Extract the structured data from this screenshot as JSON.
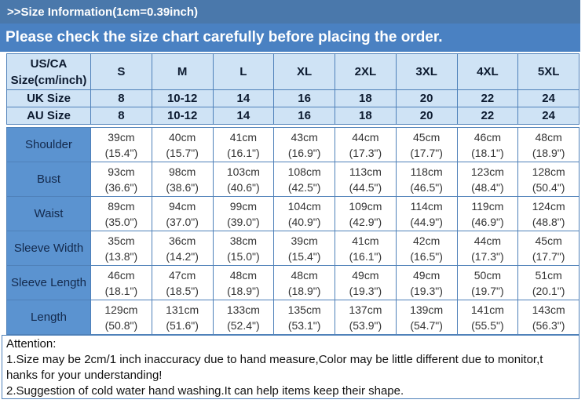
{
  "title_bar": {
    "text": ">>Size Information(1cm=0.39inch)"
  },
  "notice_bar": {
    "text": "Please check the size chart carefully before placing the order."
  },
  "size_table": {
    "corner_label_line1": "US/CA",
    "corner_label_line2": "Size(cm/inch)",
    "size_columns": [
      "S",
      "M",
      "L",
      "XL",
      "2XL",
      "3XL",
      "4XL",
      "5XL"
    ],
    "uk_row": {
      "label": "UK Size",
      "values": [
        "8",
        "10-12",
        "14",
        "16",
        "18",
        "20",
        "22",
        "24"
      ]
    },
    "au_row": {
      "label": "AU Size",
      "values": [
        "8",
        "10-12",
        "14",
        "16",
        "18",
        "20",
        "22",
        "24"
      ]
    },
    "measurement_rows": [
      {
        "label": "Shoulder",
        "cm": [
          "39cm",
          "40cm",
          "41cm",
          "43cm",
          "44cm",
          "45cm",
          "46cm",
          "48cm"
        ],
        "inch": [
          "(15.4\")",
          "(15.7\")",
          "(16.1\")",
          "(16.9\")",
          "(17.3\")",
          "(17.7\")",
          "(18.1\")",
          "(18.9\")"
        ]
      },
      {
        "label": "Bust",
        "cm": [
          "93cm",
          "98cm",
          "103cm",
          "108cm",
          "113cm",
          "118cm",
          "123cm",
          "128cm"
        ],
        "inch": [
          "(36.6\")",
          "(38.6\")",
          "(40.6\")",
          "(42.5\")",
          "(44.5\")",
          "(46.5\")",
          "(48.4\")",
          "(50.4\")"
        ]
      },
      {
        "label": "Waist",
        "cm": [
          "89cm",
          "94cm",
          "99cm",
          "104cm",
          "109cm",
          "114cm",
          "119cm",
          "124cm"
        ],
        "inch": [
          "(35.0\")",
          "(37.0\")",
          "(39.0\")",
          "(40.9\")",
          "(42.9\")",
          "(44.9\")",
          "(46.9\")",
          "(48.8\")"
        ]
      },
      {
        "label": "Sleeve Width",
        "cm": [
          "35cm",
          "36cm",
          "38cm",
          "39cm",
          "41cm",
          "42cm",
          "44cm",
          "45cm"
        ],
        "inch": [
          "(13.8\")",
          "(14.2\")",
          "(15.0\")",
          "(15.4\")",
          "(16.1\")",
          "(16.5\")",
          "(17.3\")",
          "(17.7\")"
        ]
      },
      {
        "label": "Sleeve Length",
        "cm": [
          "46cm",
          "47cm",
          "48cm",
          "48cm",
          "49cm",
          "49cm",
          "50cm",
          "51cm"
        ],
        "inch": [
          "(18.1\")",
          "(18.5\")",
          "(18.9\")",
          "(18.9\")",
          "(19.3\")",
          "(19.3\")",
          "(19.7\")",
          "(20.1\")"
        ]
      },
      {
        "label": "Length",
        "cm": [
          "129cm",
          "131cm",
          "133cm",
          "135cm",
          "137cm",
          "139cm",
          "141cm",
          "143cm"
        ],
        "inch": [
          "(50.8\")",
          "(51.6\")",
          "(52.4\")",
          "(53.1\")",
          "(53.9\")",
          "(54.7\")",
          "(55.5\")",
          "(56.3\")"
        ]
      }
    ]
  },
  "attention": {
    "heading": "Attention:",
    "line1": "1.Size may be 2cm/1 inch inaccuracy due to hand measure,Color may be little different due to monitor,t",
    "line2": "hanks for your understanding!",
    "line3": "2.Suggestion of cold water hand washing.It can help items keep their shape."
  },
  "colors": {
    "title_bar_bg": "#4a78ab",
    "notice_bar_bg": "#4a81c2",
    "header_cell_bg": "#cfe3f5",
    "label_cell_bg": "#5b93d0",
    "border": "#4f81b9",
    "header_text": "#0d1b30",
    "cell_text": "#333333"
  }
}
